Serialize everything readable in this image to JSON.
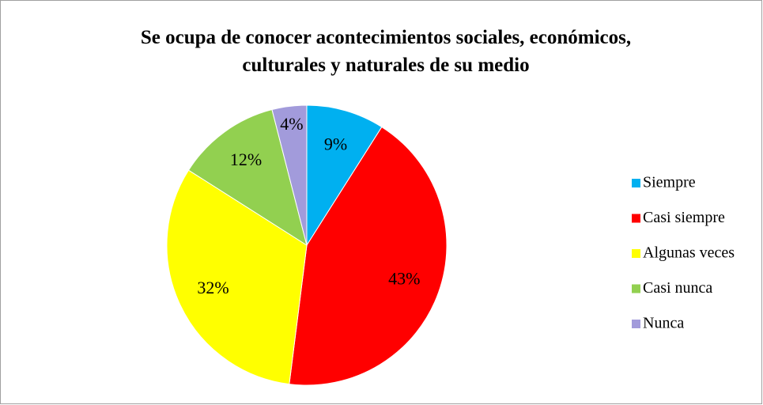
{
  "chart_data": {
    "type": "pie",
    "title": "Se ocupa de conocer acontecimientos sociales, económicos, culturales y naturales de su medio",
    "categories": [
      "Siempre",
      "Casi siempre",
      "Algunas veces",
      "Casi nunca",
      "Nunca"
    ],
    "values": [
      9,
      43,
      32,
      12,
      4
    ],
    "value_labels": [
      "9%",
      "43%",
      "32%",
      "12%",
      "4%"
    ],
    "colors": [
      "#00b0f0",
      "#ff0000",
      "#ffff00",
      "#92d050",
      "#a29bdb"
    ],
    "legend": "right"
  }
}
